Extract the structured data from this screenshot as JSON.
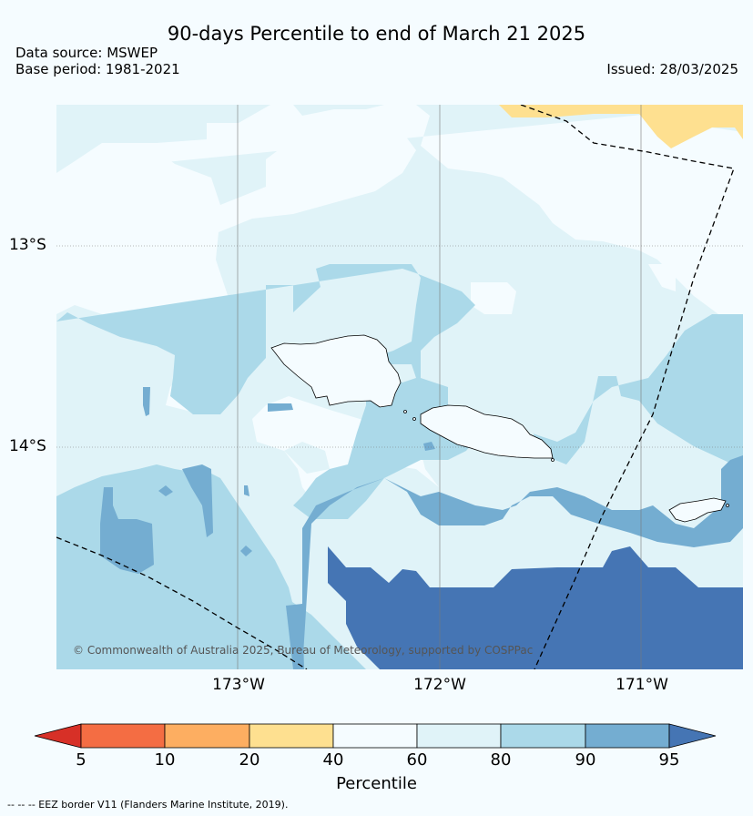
{
  "header": {
    "title": "90-days Percentile to end of March 21 2025",
    "data_source": "Data source: MSWEP",
    "base_period": "Base period: 1981-2021",
    "issued": "Issued: 28/03/2025"
  },
  "map": {
    "lat_labels": [
      "13°S",
      "14°S"
    ],
    "lon_labels": [
      "173°W",
      "172°W",
      "171°W"
    ],
    "copyright": "© Commonwealth of Australia 2025, Bureau of Meteorology, supported by COSPPac",
    "colors": {
      "background": "#f5fcff",
      "p60_80": "#e0f3f8",
      "p80_90": "#abd9e9",
      "p90_95": "#74add1",
      "p95_up": "#4575b4",
      "p20_40": "#fee090"
    }
  },
  "colorbar": {
    "ticks": [
      "5",
      "10",
      "20",
      "40",
      "60",
      "80",
      "90",
      "95"
    ],
    "label": "Percentile",
    "colors": [
      "#d73027",
      "#f46d43",
      "#fdae61",
      "#fee090",
      "#f5fcff",
      "#e0f3f8",
      "#abd9e9",
      "#74add1",
      "#4575b4"
    ]
  },
  "footer": {
    "eez_note": "--  --  -- EEZ border V11 (Flanders Marine Institute, 2019)."
  }
}
